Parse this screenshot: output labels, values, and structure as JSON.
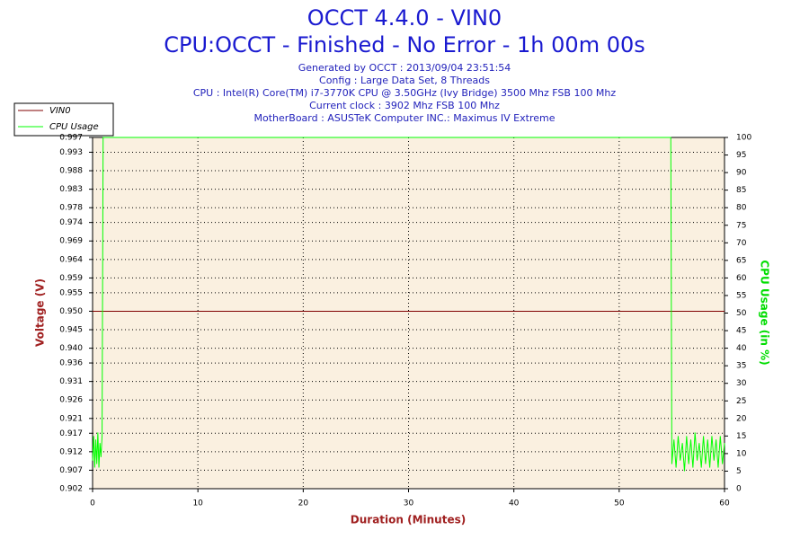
{
  "chart_data": {
    "type": "line",
    "title": "OCCT 4.4.0 - VIN0",
    "subtitle": "CPU:OCCT - Finished - No Error - 1h 00m 00s",
    "info": [
      "Generated by OCCT : 2013/09/04 23:51:54",
      "Config : Large Data Set, 8 Threads",
      "CPU : Intel(R) Core(TM) i7-3770K CPU @ 3.50GHz (Ivy Bridge) 3500 Mhz FSB 100 Mhz",
      "Current clock : 3902 Mhz FSB 100 Mhz",
      "MotherBoard : ASUSTeK Computer INC.: Maximus IV Extreme"
    ],
    "xlabel": "Duration (Minutes)",
    "ylabel": "Voltage (V)",
    "y2label": "CPU Usage (in %)",
    "x": [
      0,
      0.1,
      0.2,
      0.3,
      0.4,
      0.5,
      0.6,
      0.7,
      0.8,
      0.9,
      1.0,
      54.9,
      55.0,
      55.2,
      55.4,
      55.6,
      55.8,
      56.0,
      56.2,
      56.4,
      56.6,
      56.8,
      57.0,
      57.2,
      57.4,
      57.6,
      57.8,
      58.0,
      58.2,
      58.4,
      58.6,
      58.8,
      59.0,
      59.2,
      59.4,
      59.6,
      59.8,
      60.0
    ],
    "series": [
      {
        "name": "VIN0",
        "color": "#800000",
        "values": [
          0.95,
          0.95,
          0.95,
          0.95,
          0.95,
          0.95,
          0.95,
          0.95,
          0.95,
          0.95,
          0.95,
          0.95,
          0.95,
          0.95,
          0.95,
          0.95,
          0.95,
          0.95,
          0.95,
          0.95,
          0.95,
          0.95,
          0.95,
          0.95,
          0.95,
          0.95,
          0.95,
          0.95,
          0.95,
          0.95,
          0.95,
          0.95,
          0.95,
          0.95,
          0.95,
          0.95,
          0.95,
          0.95
        ]
      },
      {
        "name": "CPU Usage",
        "color": "#00ff00",
        "axis": "y2",
        "values": [
          8,
          15,
          6,
          14,
          7,
          16,
          6,
          13,
          9,
          15,
          100,
          100,
          7,
          14,
          6,
          15,
          8,
          13,
          5,
          15,
          7,
          14,
          6,
          16,
          8,
          13,
          6,
          15,
          7,
          14,
          6,
          15,
          8,
          14,
          6,
          15,
          7,
          13
        ]
      }
    ],
    "xlim": [
      0,
      60
    ],
    "xticks": [
      0,
      10,
      20,
      30,
      40,
      50,
      60
    ],
    "ylim": [
      0.902,
      0.997
    ],
    "yticks": [
      0.902,
      0.907,
      0.912,
      0.917,
      0.921,
      0.926,
      0.931,
      0.936,
      {
        "value": 0.94,
        "label": "0.940"
      },
      0.945,
      {
        "value": 0.95,
        "label": "0.950"
      },
      0.955,
      0.959,
      0.964,
      0.969,
      0.974,
      0.978,
      0.983,
      0.988,
      0.993,
      0.997
    ],
    "y2lim": [
      0,
      100
    ],
    "y2ticks": [
      0,
      5,
      10,
      15,
      20,
      25,
      30,
      35,
      40,
      45,
      50,
      55,
      60,
      65,
      70,
      75,
      80,
      85,
      90,
      95,
      100
    ],
    "grid": true
  }
}
